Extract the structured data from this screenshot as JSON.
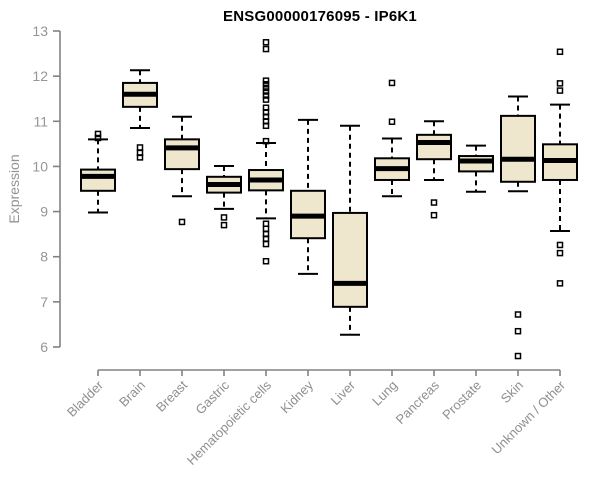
{
  "chart_data": {
    "type": "boxplot",
    "title": "ENSG00000176095 - IP6K1",
    "ylabel": "Expression",
    "xlabel": "",
    "ylim": [
      6,
      13
    ],
    "yticks": [
      6,
      7,
      8,
      9,
      10,
      11,
      12,
      13
    ],
    "grid": false,
    "legend": "none",
    "categories": [
      "Bladder",
      "Brain",
      "Breast",
      "Gastric",
      "Hematopoietic cells",
      "Kidney",
      "Liver",
      "Lung",
      "Pancreas",
      "Prostate",
      "Skin",
      "Unknown / Other"
    ],
    "series": [
      {
        "category": "Bladder",
        "whisker_low": 8.98,
        "q1": 9.46,
        "median": 9.78,
        "q3": 9.93,
        "whisker_high": 10.6,
        "outliers": [
          10.72,
          10.63
        ]
      },
      {
        "category": "Brain",
        "whisker_low": 10.85,
        "q1": 11.32,
        "median": 11.6,
        "q3": 11.85,
        "whisker_high": 12.13,
        "outliers": [
          10.42,
          10.3,
          10.2
        ]
      },
      {
        "category": "Breast",
        "whisker_low": 9.34,
        "q1": 9.94,
        "median": 10.41,
        "q3": 10.6,
        "whisker_high": 11.1,
        "outliers": [
          8.77
        ]
      },
      {
        "category": "Gastric",
        "whisker_low": 9.06,
        "q1": 9.42,
        "median": 9.6,
        "q3": 9.77,
        "whisker_high": 10.01,
        "outliers": [
          8.87,
          8.7
        ]
      },
      {
        "category": "Hematopoietic cells",
        "whisker_low": 8.85,
        "q1": 9.47,
        "median": 9.7,
        "q3": 9.92,
        "whisker_high": 10.52,
        "outliers": [
          12.75,
          12.6,
          11.9,
          11.82,
          11.74,
          11.66,
          11.57,
          11.48,
          11.3,
          11.2,
          11.1,
          11.0,
          10.9,
          10.56,
          8.73,
          8.62,
          8.5,
          8.4,
          8.28,
          7.9
        ]
      },
      {
        "category": "Kidney",
        "whisker_low": 7.62,
        "q1": 8.41,
        "median": 8.9,
        "q3": 9.46,
        "whisker_high": 11.03,
        "outliers": []
      },
      {
        "category": "Liver",
        "whisker_low": 6.27,
        "q1": 6.89,
        "median": 7.41,
        "q3": 8.97,
        "whisker_high": 10.9,
        "outliers": []
      },
      {
        "category": "Lung",
        "whisker_low": 9.34,
        "q1": 9.7,
        "median": 9.95,
        "q3": 10.18,
        "whisker_high": 10.62,
        "outliers": [
          11.85,
          10.99
        ]
      },
      {
        "category": "Pancreas",
        "whisker_low": 9.7,
        "q1": 10.16,
        "median": 10.53,
        "q3": 10.7,
        "whisker_high": 11.0,
        "outliers": [
          9.2,
          8.92
        ]
      },
      {
        "category": "Prostate",
        "whisker_low": 9.44,
        "q1": 9.89,
        "median": 10.12,
        "q3": 10.23,
        "whisker_high": 10.46,
        "outliers": []
      },
      {
        "category": "Skin",
        "whisker_low": 9.45,
        "q1": 9.66,
        "median": 10.16,
        "q3": 11.12,
        "whisker_high": 11.55,
        "outliers": [
          6.72,
          6.35,
          5.8
        ]
      },
      {
        "category": "Unknown / Other",
        "whisker_low": 8.57,
        "q1": 9.7,
        "median": 10.13,
        "q3": 10.49,
        "whisker_high": 11.37,
        "outliers": [
          12.54,
          11.84,
          11.68,
          8.26,
          8.08,
          7.41
        ]
      }
    ],
    "colors": {
      "box_fill": "#EEE7CE",
      "box_border": "#000000",
      "median": "#000000",
      "whisker": "#000000",
      "outlier": "#000000",
      "axis": "#828282",
      "tick_label": "#969696",
      "title": "#000000"
    }
  }
}
